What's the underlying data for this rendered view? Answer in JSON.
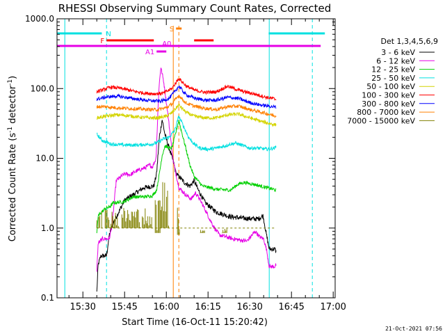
{
  "chart_data": {
    "type": "line",
    "title": "RHESSI Observing Summary Count Rates, Corrected",
    "xlabel": "Start Time (16-Oct-11 15:20:42)",
    "ylabel_main": "Corrected Count Rate (s",
    "ylabel_sup": "-1",
    "ylabel_mid": " detector",
    "ylabel_end": ")",
    "y_scale": "log",
    "ylim": [
      0.1,
      1000.0
    ],
    "xlim_minutes": [
      20.7,
      120.7
    ],
    "y_ticks": [
      "0.1",
      "1.0",
      "10.0",
      "100.0",
      "1000.0"
    ],
    "x_ticks": [
      "15:30",
      "15:45",
      "16:00",
      "16:15",
      "16:30",
      "16:45",
      "17:00"
    ],
    "legend_title": "Det 1,3,4,5,6,9",
    "legend_position": "right",
    "footer": "21-Oct-2021 07:56",
    "series": [
      {
        "name": "3 - 6 keV",
        "color": "#000000",
        "points": [
          [
            35,
            0.12
          ],
          [
            35.5,
            0.3
          ],
          [
            36.5,
            0.4
          ],
          [
            38.5,
            0.4
          ],
          [
            39.5,
            0.8
          ],
          [
            41,
            1.2
          ],
          [
            45,
            2.5
          ],
          [
            48,
            3.0
          ],
          [
            52,
            3.8
          ],
          [
            55.5,
            4.0
          ],
          [
            56.5,
            6
          ],
          [
            57.5,
            20
          ],
          [
            58.5,
            36
          ],
          [
            59.5,
            22
          ],
          [
            61,
            14
          ],
          [
            62.5,
            9
          ],
          [
            63.5,
            6
          ],
          [
            64.5,
            5.5
          ],
          [
            66.5,
            4.5
          ],
          [
            68.5,
            4.0
          ],
          [
            70,
            4.8
          ],
          [
            71.5,
            3.5
          ],
          [
            74,
            2.3
          ],
          [
            78,
            1.7
          ],
          [
            83,
            1.45
          ],
          [
            88,
            1.38
          ],
          [
            93,
            1.35
          ],
          [
            94.8,
            1.5
          ],
          [
            96,
            0.8
          ],
          [
            97,
            0.5
          ],
          [
            99,
            0.5
          ],
          [
            99.5,
            0.45
          ]
        ]
      },
      {
        "name": "6 - 12 keV",
        "color": "#e600e6",
        "points": [
          [
            35,
            0.25
          ],
          [
            35.5,
            0.6
          ],
          [
            37,
            0.7
          ],
          [
            39.5,
            0.7
          ],
          [
            40.5,
            1.1
          ],
          [
            42,
            4.8
          ],
          [
            45,
            6.0
          ],
          [
            47,
            5.8
          ],
          [
            49,
            6.5
          ],
          [
            52,
            7.2
          ],
          [
            54,
            8.0
          ],
          [
            55,
            7.5
          ],
          [
            56.3,
            10
          ],
          [
            57.3,
            95
          ],
          [
            58,
            205
          ],
          [
            59,
            130
          ],
          [
            60.5,
            45
          ],
          [
            61.5,
            20
          ],
          [
            62.5,
            9
          ],
          [
            63.5,
            6
          ],
          [
            64.5,
            3.8
          ],
          [
            67,
            3.0
          ],
          [
            69,
            2.6
          ],
          [
            70.5,
            3.2
          ],
          [
            72,
            2.6
          ],
          [
            73.5,
            2.0
          ],
          [
            75,
            1.5
          ],
          [
            77,
            1.05
          ],
          [
            79,
            0.8
          ],
          [
            84,
            0.7
          ],
          [
            89,
            0.65
          ],
          [
            92,
            0.9
          ],
          [
            93.5,
            0.75
          ],
          [
            95,
            0.7
          ],
          [
            96,
            0.5
          ],
          [
            97,
            0.28
          ],
          [
            99,
            0.28
          ],
          [
            99.5,
            0.3
          ]
        ]
      },
      {
        "name": "12 - 25 keV",
        "color": "#00d000",
        "points": [
          [
            35,
            0.8
          ],
          [
            35.5,
            1.5
          ],
          [
            38,
            1.9
          ],
          [
            39.5,
            2.0
          ],
          [
            41,
            2.3
          ],
          [
            45,
            2.4
          ],
          [
            48,
            2.8
          ],
          [
            52,
            2.8
          ],
          [
            55,
            2.9
          ],
          [
            56.5,
            3.5
          ],
          [
            57.5,
            6
          ],
          [
            58.5,
            11
          ],
          [
            59.5,
            15
          ],
          [
            61,
            14
          ],
          [
            62,
            14
          ],
          [
            63,
            20
          ],
          [
            64.5,
            35
          ],
          [
            65.5,
            24
          ],
          [
            67,
            14
          ],
          [
            68.5,
            8
          ],
          [
            70,
            5.5
          ],
          [
            73,
            4.0
          ],
          [
            78,
            3.6
          ],
          [
            83,
            3.5
          ],
          [
            86,
            4.3
          ],
          [
            88,
            4.5
          ],
          [
            92,
            4.2
          ],
          [
            96,
            3.8
          ],
          [
            99.5,
            3.5
          ]
        ]
      },
      {
        "name": "25 - 50 keV",
        "color": "#00e0e0",
        "points": [
          [
            35,
            22
          ],
          [
            37,
            18
          ],
          [
            40,
            16
          ],
          [
            45,
            15.5
          ],
          [
            50,
            15.5
          ],
          [
            55,
            16
          ],
          [
            57,
            17
          ],
          [
            59,
            19
          ],
          [
            61,
            20
          ],
          [
            63,
            25
          ],
          [
            64.5,
            40
          ],
          [
            66,
            30
          ],
          [
            68,
            20
          ],
          [
            70,
            16
          ],
          [
            72,
            14
          ],
          [
            75,
            13.5
          ],
          [
            78,
            14
          ],
          [
            81,
            15
          ],
          [
            83,
            16
          ],
          [
            85,
            16.5
          ],
          [
            88,
            15
          ],
          [
            90,
            14
          ],
          [
            93,
            14
          ],
          [
            96,
            13.5
          ],
          [
            99,
            14
          ],
          [
            99.5,
            15
          ]
        ]
      },
      {
        "name": "50 - 100 keV",
        "color": "#d4d400",
        "points": [
          [
            35,
            38
          ],
          [
            38,
            40
          ],
          [
            42,
            42
          ],
          [
            46,
            41
          ],
          [
            50,
            39
          ],
          [
            54,
            38
          ],
          [
            57,
            38
          ],
          [
            60,
            40
          ],
          [
            62,
            45
          ],
          [
            64.5,
            58
          ],
          [
            67,
            46
          ],
          [
            70,
            40
          ],
          [
            74,
            38
          ],
          [
            78,
            38
          ],
          [
            82,
            42
          ],
          [
            86,
            43
          ],
          [
            90,
            38
          ],
          [
            95,
            33
          ],
          [
            99.5,
            30
          ]
        ]
      },
      {
        "name": "100 - 300 keV",
        "color": "#ff0000",
        "points": [
          [
            35,
            90
          ],
          [
            38,
            98
          ],
          [
            40,
            105
          ],
          [
            44,
            100
          ],
          [
            48,
            92
          ],
          [
            52,
            86
          ],
          [
            56,
            84
          ],
          [
            59,
            86
          ],
          [
            62,
            100
          ],
          [
            64.5,
            140
          ],
          [
            67,
            110
          ],
          [
            70,
            95
          ],
          [
            74,
            88
          ],
          [
            78,
            90
          ],
          [
            82,
            108
          ],
          [
            85,
            98
          ],
          [
            88,
            90
          ],
          [
            92,
            83
          ],
          [
            96,
            75
          ],
          [
            99.5,
            70
          ]
        ]
      },
      {
        "name": "300 - 800 keV",
        "color": "#0000ff",
        "points": [
          [
            35,
            70
          ],
          [
            38,
            75
          ],
          [
            42,
            78
          ],
          [
            46,
            74
          ],
          [
            50,
            70
          ],
          [
            54,
            67
          ],
          [
            58,
            66
          ],
          [
            61,
            72
          ],
          [
            64.5,
            108
          ],
          [
            67,
            82
          ],
          [
            70,
            73
          ],
          [
            74,
            68
          ],
          [
            78,
            68
          ],
          [
            82,
            75
          ],
          [
            86,
            72
          ],
          [
            90,
            63
          ],
          [
            94,
            58
          ],
          [
            97,
            56
          ],
          [
            99.5,
            54
          ]
        ]
      },
      {
        "name": "800 - 7000 keV",
        "color": "#ff8000",
        "points": [
          [
            35,
            55
          ],
          [
            38,
            55
          ],
          [
            42,
            53
          ],
          [
            46,
            52
          ],
          [
            50,
            51
          ],
          [
            54,
            50
          ],
          [
            57,
            50
          ],
          [
            60,
            53
          ],
          [
            62,
            60
          ],
          [
            64.5,
            80
          ],
          [
            67,
            62
          ],
          [
            70,
            56
          ],
          [
            74,
            52
          ],
          [
            78,
            50
          ],
          [
            82,
            55
          ],
          [
            86,
            56
          ],
          [
            90,
            50
          ],
          [
            95,
            45
          ],
          [
            99.5,
            40
          ]
        ]
      },
      {
        "name": "7000 - 15000 keV",
        "color": "#808000",
        "points": [
          [
            35,
            1.0
          ],
          [
            99.5,
            1.0
          ]
        ]
      }
    ],
    "series_8_blocks": [
      [
        35,
        37,
        1.0,
        2.5
      ],
      [
        38,
        41,
        1.0,
        2.0
      ],
      [
        41,
        43,
        1.0,
        1.8
      ],
      [
        44,
        53,
        1.0,
        2.0
      ],
      [
        53,
        55,
        1.0,
        1.5
      ],
      [
        56,
        58,
        0.85,
        3.0
      ],
      [
        58,
        61,
        1.0,
        5.0
      ],
      [
        62,
        63,
        1.0,
        1.0
      ],
      [
        64,
        65,
        0.8,
        2.5
      ],
      [
        65,
        67,
        1.0,
        1.0
      ],
      [
        72,
        74,
        0.85,
        1.0
      ],
      [
        80,
        82,
        0.85,
        1.0
      ]
    ],
    "attenuator_lines_min": [
      [
        62.5,
        "solid"
      ],
      [
        64.5,
        "dashed"
      ]
    ],
    "night_lines_min": [
      [
        23.5,
        "solid"
      ],
      [
        38.5,
        "dashed"
      ],
      [
        97,
        "solid"
      ],
      [
        112.5,
        "dashed"
      ]
    ],
    "bars": [
      {
        "label": "N",
        "color": "#00e0e0",
        "y": 48,
        "segments": [
          [
            20.7,
            36.8
          ],
          [
            96.8,
            117
          ]
        ]
      },
      {
        "label": "F",
        "color": "#ff0000",
        "y": 58,
        "segments": [
          [
            38.5,
            55.5
          ],
          [
            70,
            77
          ]
        ]
      },
      {
        "label": "S",
        "color": "#ff8000",
        "y": 41,
        "segments": [
          [
            63.5,
            65.5
          ]
        ]
      },
      {
        "label": "A0",
        "color": "#e600e6",
        "y": 66,
        "segments": [
          [
            20.7,
            115.5
          ]
        ]
      },
      {
        "label": "A1",
        "color": "#e600e6",
        "y": 74,
        "segments": [
          [
            56.5,
            60
          ]
        ]
      }
    ]
  }
}
